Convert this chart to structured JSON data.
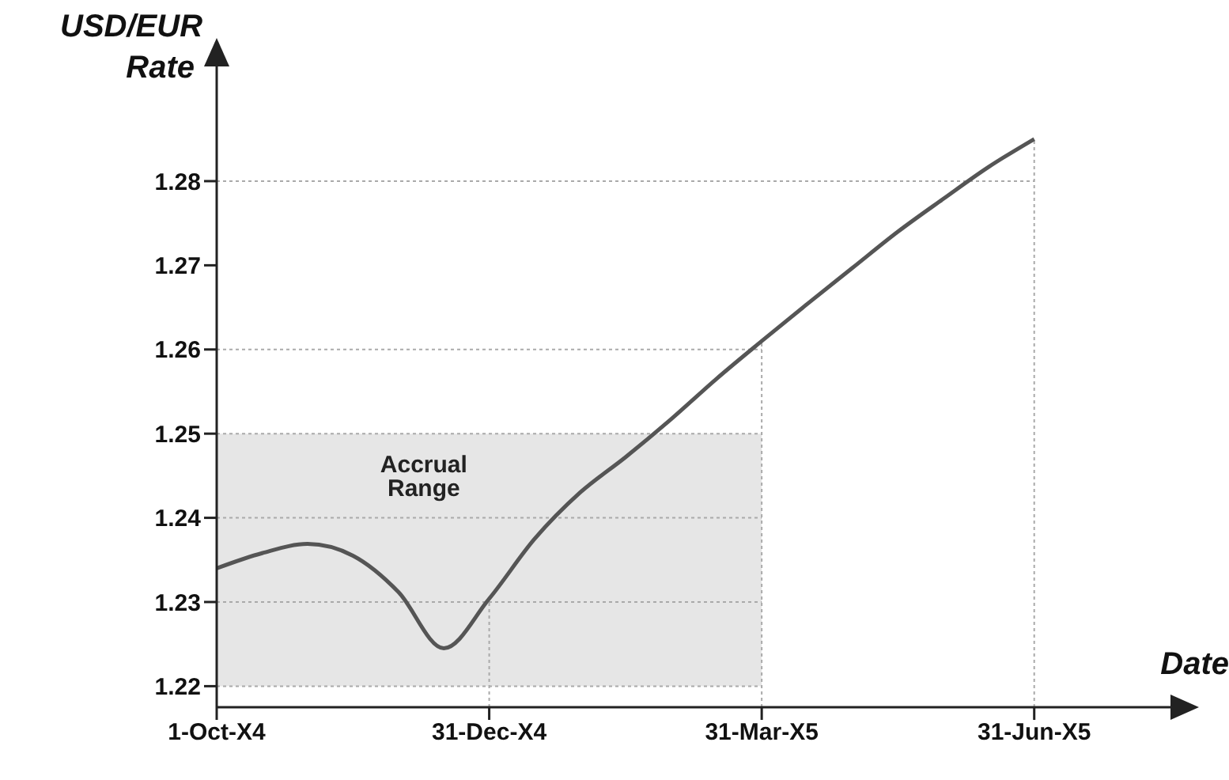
{
  "chart_data": {
    "type": "line",
    "xlabel": "Date",
    "ylabel": "USD/EUR Rate",
    "categories": [
      "1-Oct-X4",
      null,
      null,
      null,
      null,
      null,
      "31-Dec-X4",
      null,
      null,
      null,
      null,
      null,
      "31-Mar-X5",
      null,
      null,
      null,
      null,
      null,
      "31-Jun-X5",
      null,
      null,
      null
    ],
    "series": [
      {
        "color": "#555555",
        "values": [
          1.234,
          1.2358,
          1.2369,
          1.2355,
          1.2312,
          1.2245,
          1.2304,
          1.2375,
          1.243,
          1.2472,
          1.2517,
          1.2565,
          1.261,
          1.2654,
          1.2697,
          1.274,
          1.2779,
          1.2817,
          1.285,
          null,
          null,
          null
        ]
      }
    ],
    "ylim": [
      1.2175,
      1.294
    ],
    "yticks": [
      1.22,
      1.23,
      1.24,
      1.25,
      1.26,
      1.27,
      1.28
    ],
    "bands": [
      {
        "axis": "y",
        "from": 1.22,
        "to": 1.25,
        "label": "Accrual Range",
        "color": "#e6e6e6"
      }
    ],
    "ref_lines": [
      {
        "axis": "x",
        "value": "31-Dec-X4",
        "color": "#aaaaaa",
        "line_style": "dotted"
      },
      {
        "axis": "x",
        "value": "31-Mar-X5",
        "color": "#aaaaaa",
        "line_style": "dotted"
      },
      {
        "axis": "x",
        "value": "31-Jun-X5",
        "color": "#aaaaaa",
        "line_style": "dotted"
      },
      {
        "axis": "y",
        "value": 1.22,
        "color": "#aaaaaa",
        "line_style": "dotted"
      },
      {
        "axis": "y",
        "value": 1.23,
        "color": "#aaaaaa",
        "line_style": "dotted"
      },
      {
        "axis": "y",
        "value": 1.24,
        "color": "#aaaaaa",
        "line_style": "dotted"
      },
      {
        "axis": "y",
        "value": 1.25,
        "color": "#aaaaaa",
        "line_style": "dotted"
      },
      {
        "axis": "y",
        "value": 1.26,
        "color": "#aaaaaa",
        "line_style": "dotted"
      },
      {
        "axis": "y",
        "value": 1.28,
        "color": "#aaaaaa",
        "line_style": "dotted"
      }
    ],
    "grid": false,
    "legend": false,
    "marker": "none",
    "line_style": "solid"
  }
}
